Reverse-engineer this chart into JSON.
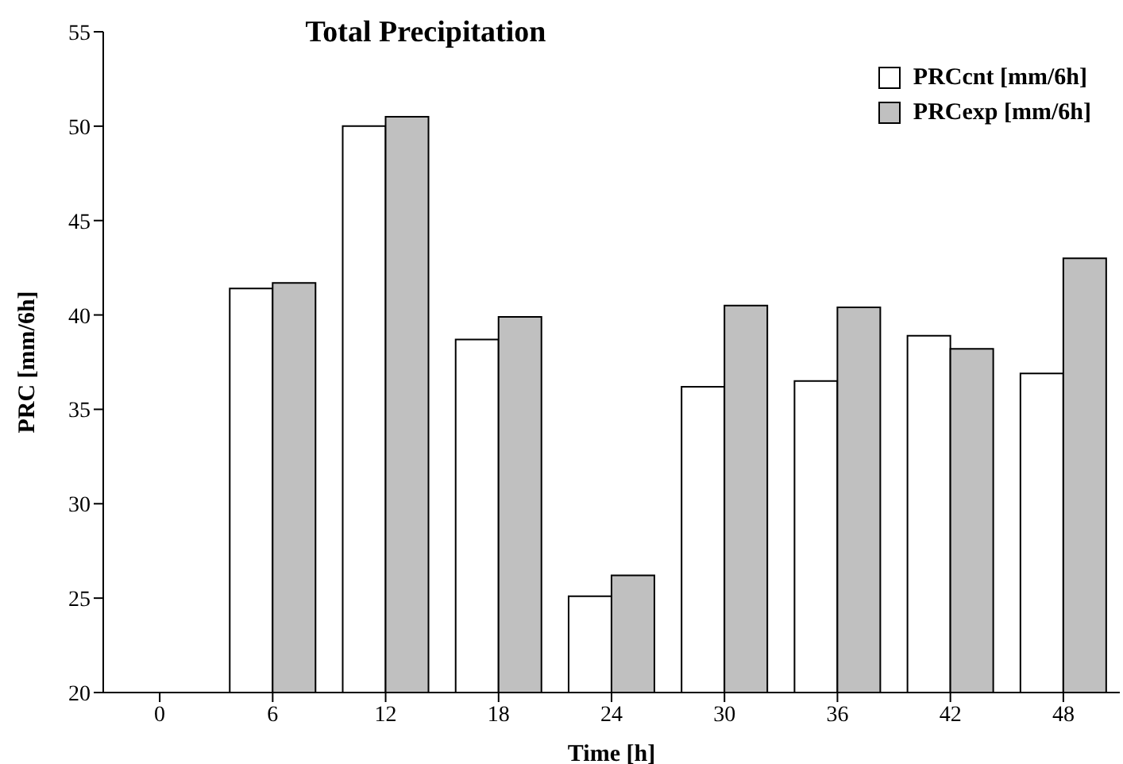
{
  "chart_data": {
    "type": "bar",
    "title": "Total Precipitation",
    "xlabel": "Time [h]",
    "ylabel": "PRC [mm/6h]",
    "categories": [
      "0",
      "6",
      "12",
      "18",
      "24",
      "30",
      "36",
      "42",
      "48"
    ],
    "series": [
      {
        "name": "PRCcnt [mm/6h]",
        "color": "#ffffff",
        "values": [
          null,
          41.4,
          50.0,
          38.7,
          25.1,
          36.2,
          36.5,
          38.9,
          36.9
        ]
      },
      {
        "name": "PRCexp [mm/6h]",
        "color": "#c0c0c0",
        "values": [
          null,
          41.7,
          50.5,
          39.9,
          26.2,
          40.5,
          40.4,
          38.2,
          43.0
        ]
      }
    ],
    "ylim": [
      20,
      55
    ],
    "yticks": [
      20,
      25,
      30,
      35,
      40,
      45,
      50,
      55
    ],
    "grid": false,
    "legend": "top right"
  }
}
